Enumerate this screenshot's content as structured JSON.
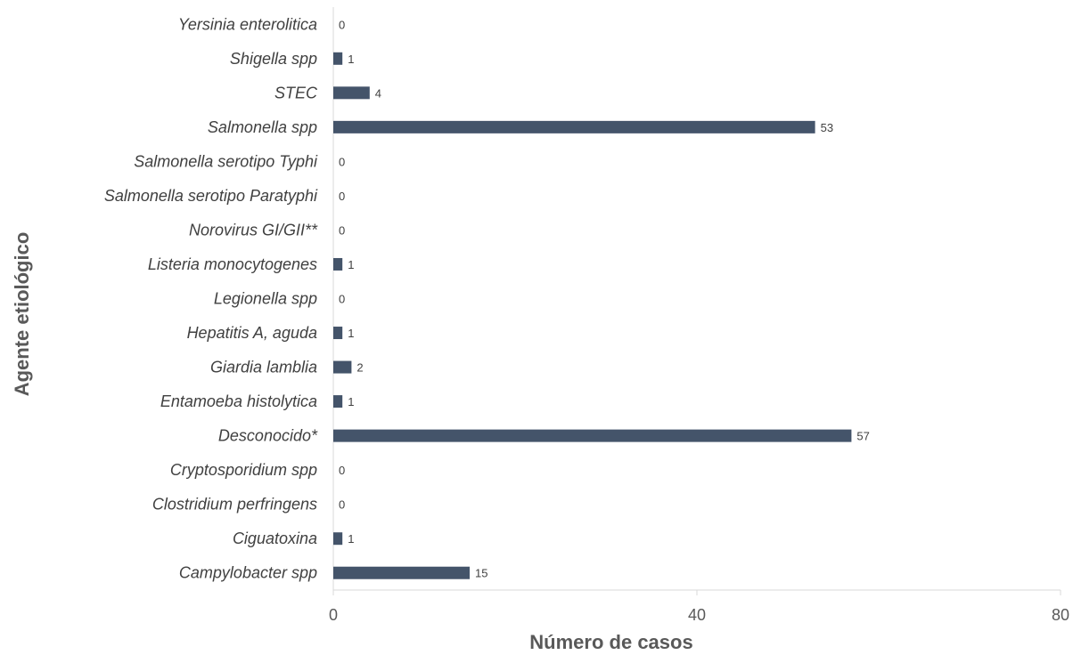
{
  "chart_data": {
    "type": "bar",
    "orientation": "horizontal",
    "categories": [
      "Yersinia enterolitica",
      "Shigella spp",
      "STEC",
      "Salmonella spp",
      "Salmonella serotipo Typhi",
      "Salmonella serotipo Paratyphi",
      "Norovirus GI/GII**",
      "Listeria monocytogenes",
      "Legionella spp",
      "Hepatitis A, aguda",
      "Giardia lamblia",
      "Entamoeba histolytica",
      "Desconocido*",
      "Cryptosporidium spp",
      "Clostridium perfringens",
      "Ciguatoxina",
      "Campylobacter spp"
    ],
    "values": [
      0,
      1,
      4,
      53,
      0,
      0,
      0,
      1,
      0,
      1,
      2,
      1,
      57,
      0,
      0,
      1,
      15
    ],
    "xlabel": "Número de casos",
    "ylabel": "Agente etiológico",
    "xlim": [
      0,
      80
    ],
    "xticks": [
      0,
      40,
      80
    ],
    "grid": false,
    "bar_color": "#44546a",
    "data_labels": true
  }
}
